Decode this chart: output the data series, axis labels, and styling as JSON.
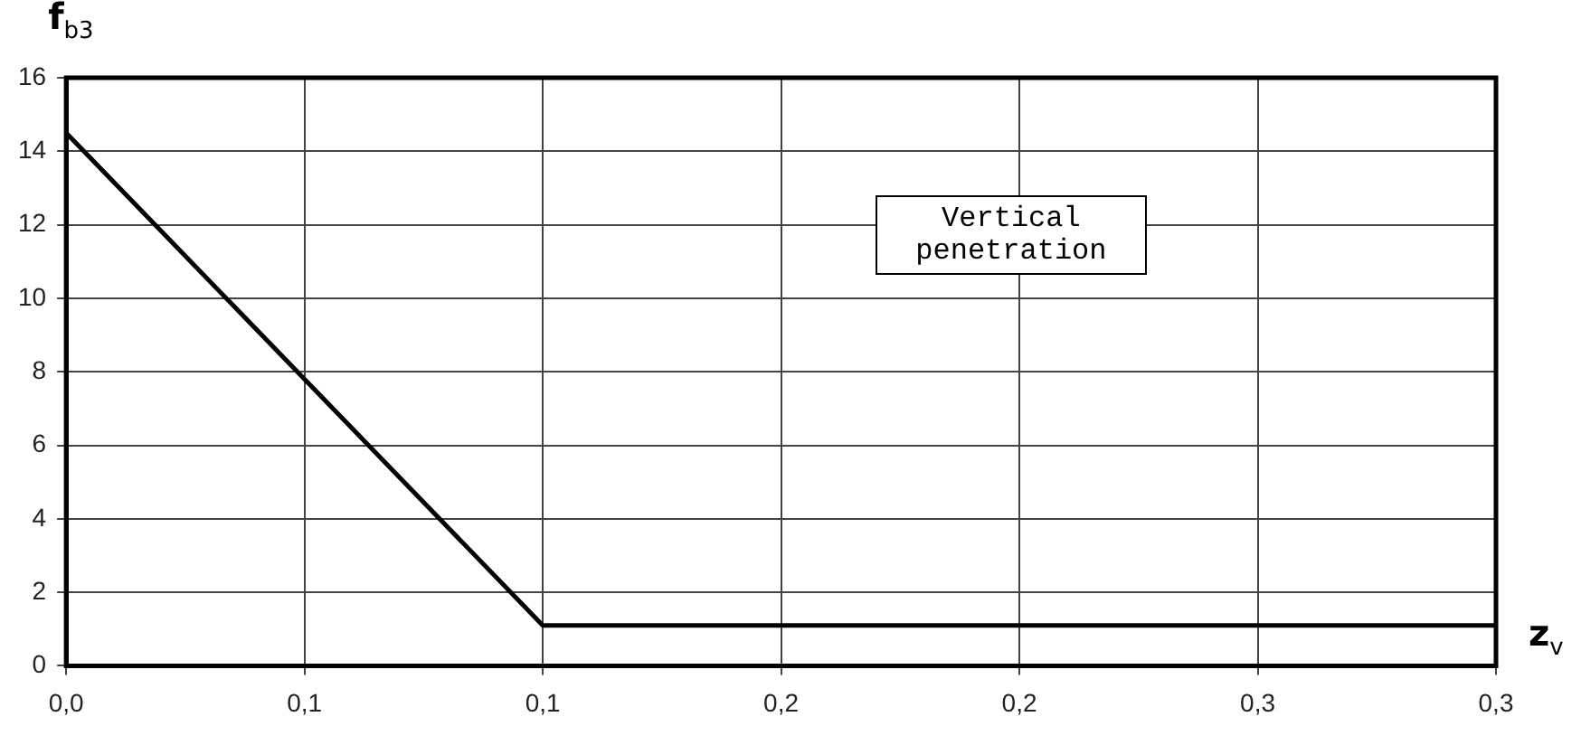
{
  "chart_data": {
    "type": "line",
    "xlabel": "z$_{v}$",
    "ylabel": "f$_{b3}$",
    "annotations": [
      "Vertical penetration"
    ],
    "x": [
      0,
      0.1,
      0.3
    ],
    "series": [
      {
        "color": "#000000",
        "values": [
          14.5,
          1.1,
          1.1
        ]
      }
    ],
    "xlim": [
      0,
      0.3
    ],
    "xticks": [
      {
        "value": 0,
        "label": "0,0"
      },
      {
        "value": 0.05,
        "label": "0,1"
      },
      {
        "value": 0.1,
        "label": "0,1"
      },
      {
        "value": 0.15,
        "label": "0,2"
      },
      {
        "value": 0.2,
        "label": "0,2"
      },
      {
        "value": 0.25,
        "label": "0,3"
      },
      {
        "value": 0.3,
        "label": "0,3"
      }
    ],
    "ylim": [
      0,
      16
    ],
    "yticks": [
      0,
      2,
      4,
      6,
      8,
      10,
      12,
      14,
      16
    ],
    "grid": true,
    "legend": false,
    "marker": "none",
    "line_style": "solid"
  }
}
